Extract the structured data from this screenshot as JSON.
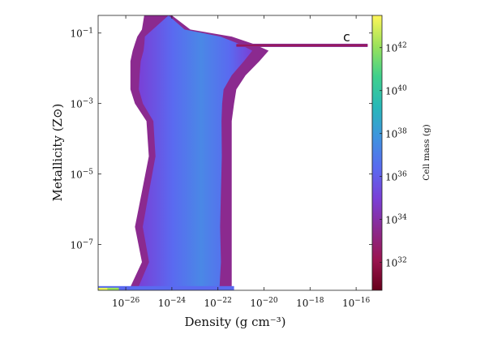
{
  "chart_data": {
    "type": "heatmap",
    "panel_label": "c",
    "xlabel": "Density (g cm⁻³)",
    "ylabel": "Metallicity (Z⊙)",
    "x_scale": "log",
    "y_scale": "log",
    "xlim_log10": [
      -27.2,
      -15.3
    ],
    "ylim_log10": [
      -8.3,
      -0.5
    ],
    "x_ticks": [
      {
        "exp": -26,
        "label": "10",
        "sup": "-26"
      },
      {
        "exp": -24,
        "label": "10",
        "sup": "-24"
      },
      {
        "exp": -22,
        "label": "10",
        "sup": "-22"
      },
      {
        "exp": -20,
        "label": "10",
        "sup": "-20"
      },
      {
        "exp": -18,
        "label": "10",
        "sup": "-18"
      },
      {
        "exp": -16,
        "label": "10",
        "sup": "-16"
      }
    ],
    "y_ticks": [
      {
        "exp": -1,
        "label": "10",
        "sup": "-1"
      },
      {
        "exp": -3,
        "label": "10",
        "sup": "-3"
      },
      {
        "exp": -5,
        "label": "10",
        "sup": "-5"
      },
      {
        "exp": -7,
        "label": "10",
        "sup": "-7"
      }
    ],
    "colorbar": {
      "label": "Cell mass (g)",
      "scale": "log",
      "range_log10": [
        30.7,
        43.5
      ],
      "ticks": [
        {
          "exp": 32,
          "label": "10",
          "sup": "32"
        },
        {
          "exp": 34,
          "label": "10",
          "sup": "34"
        },
        {
          "exp": 36,
          "label": "10",
          "sup": "36"
        },
        {
          "exp": 38,
          "label": "10",
          "sup": "38"
        },
        {
          "exp": 40,
          "label": "10",
          "sup": "40"
        },
        {
          "exp": 42,
          "label": "10",
          "sup": "42"
        }
      ],
      "colors": [
        "#67001a",
        "#9a1550",
        "#8b2a8f",
        "#7a3fd6",
        "#5a6af0",
        "#3f93df",
        "#28b8b8",
        "#3fd08c",
        "#9be25a",
        "#fff65a"
      ]
    },
    "distribution": {
      "description_free_shape": true,
      "envelope": [
        {
          "logZ": -0.5,
          "rho_min": -25.2,
          "rho_max": -24.0
        },
        {
          "logZ": -0.9,
          "rho_min": -25.3,
          "rho_max": -23.2
        },
        {
          "logZ": -1.1,
          "rho_min": -25.5,
          "rho_max": -21.4
        },
        {
          "logZ": -1.3,
          "rho_min": -25.6,
          "rho_max": -20.5
        },
        {
          "logZ": -1.5,
          "rho_min": -25.7,
          "rho_max": -19.8
        },
        {
          "logZ": -1.8,
          "rho_min": -25.8,
          "rho_max": -20.2
        },
        {
          "logZ": -2.2,
          "rho_min": -25.8,
          "rho_max": -20.8
        },
        {
          "logZ": -2.6,
          "rho_min": -25.8,
          "rho_max": -21.2
        },
        {
          "logZ": -3.0,
          "rho_min": -25.6,
          "rho_max": -21.3
        },
        {
          "logZ": -3.5,
          "rho_min": -25.1,
          "rho_max": -21.4
        },
        {
          "logZ": -4.5,
          "rho_min": -25.0,
          "rho_max": -21.4
        },
        {
          "logZ": -5.5,
          "rho_min": -25.3,
          "rho_max": -21.4
        },
        {
          "logZ": -6.5,
          "rho_min": -25.6,
          "rho_max": -21.4
        },
        {
          "logZ": -7.5,
          "rho_min": -25.3,
          "rho_max": -21.4
        },
        {
          "logZ": -8.2,
          "rho_min": -25.8,
          "rho_max": -21.4
        }
      ],
      "ridge": {
        "logZ": -1.35,
        "rho_from": -21.2,
        "rho_to": -15.5
      },
      "floor": {
        "logZ": -8.25,
        "rho_from": -27.2,
        "rho_to": -21.3
      }
    }
  }
}
